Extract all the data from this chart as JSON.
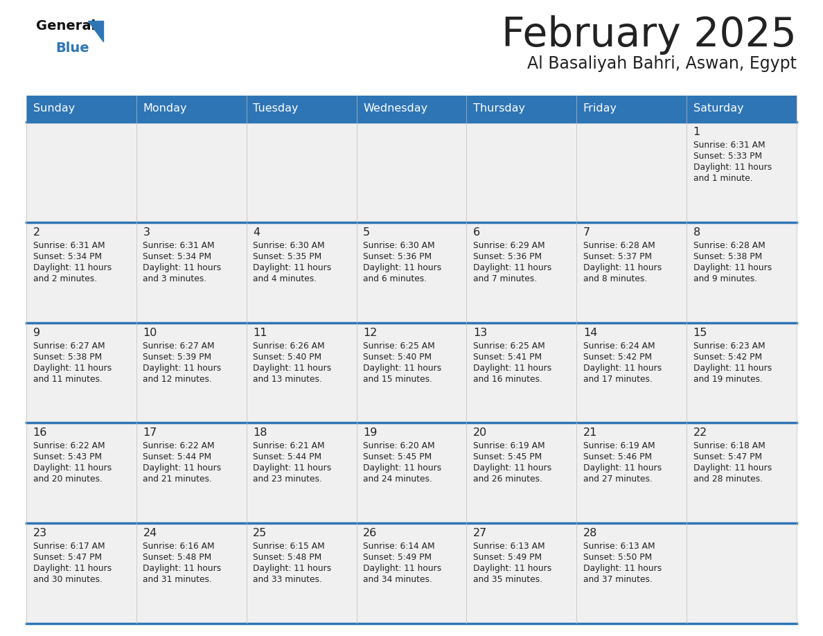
{
  "title": "February 2025",
  "subtitle": "Al Basaliyah Bahri, Aswan, Egypt",
  "header_color": "#2E75B6",
  "header_text_color": "#FFFFFF",
  "day_names": [
    "Sunday",
    "Monday",
    "Tuesday",
    "Wednesday",
    "Thursday",
    "Friday",
    "Saturday"
  ],
  "background_color": "#FFFFFF",
  "cell_bg_color": "#F0F0F0",
  "separator_color": "#2E75B6",
  "text_color": "#222222",
  "days": [
    {
      "day": 1,
      "col": 6,
      "row": 0,
      "sunrise": "6:31 AM",
      "sunset": "5:33 PM",
      "daylight": "11 hours and 1 minute."
    },
    {
      "day": 2,
      "col": 0,
      "row": 1,
      "sunrise": "6:31 AM",
      "sunset": "5:34 PM",
      "daylight": "11 hours and 2 minutes."
    },
    {
      "day": 3,
      "col": 1,
      "row": 1,
      "sunrise": "6:31 AM",
      "sunset": "5:34 PM",
      "daylight": "11 hours and 3 minutes."
    },
    {
      "day": 4,
      "col": 2,
      "row": 1,
      "sunrise": "6:30 AM",
      "sunset": "5:35 PM",
      "daylight": "11 hours and 4 minutes."
    },
    {
      "day": 5,
      "col": 3,
      "row": 1,
      "sunrise": "6:30 AM",
      "sunset": "5:36 PM",
      "daylight": "11 hours and 6 minutes."
    },
    {
      "day": 6,
      "col": 4,
      "row": 1,
      "sunrise": "6:29 AM",
      "sunset": "5:36 PM",
      "daylight": "11 hours and 7 minutes."
    },
    {
      "day": 7,
      "col": 5,
      "row": 1,
      "sunrise": "6:28 AM",
      "sunset": "5:37 PM",
      "daylight": "11 hours and 8 minutes."
    },
    {
      "day": 8,
      "col": 6,
      "row": 1,
      "sunrise": "6:28 AM",
      "sunset": "5:38 PM",
      "daylight": "11 hours and 9 minutes."
    },
    {
      "day": 9,
      "col": 0,
      "row": 2,
      "sunrise": "6:27 AM",
      "sunset": "5:38 PM",
      "daylight": "11 hours and 11 minutes."
    },
    {
      "day": 10,
      "col": 1,
      "row": 2,
      "sunrise": "6:27 AM",
      "sunset": "5:39 PM",
      "daylight": "11 hours and 12 minutes."
    },
    {
      "day": 11,
      "col": 2,
      "row": 2,
      "sunrise": "6:26 AM",
      "sunset": "5:40 PM",
      "daylight": "11 hours and 13 minutes."
    },
    {
      "day": 12,
      "col": 3,
      "row": 2,
      "sunrise": "6:25 AM",
      "sunset": "5:40 PM",
      "daylight": "11 hours and 15 minutes."
    },
    {
      "day": 13,
      "col": 4,
      "row": 2,
      "sunrise": "6:25 AM",
      "sunset": "5:41 PM",
      "daylight": "11 hours and 16 minutes."
    },
    {
      "day": 14,
      "col": 5,
      "row": 2,
      "sunrise": "6:24 AM",
      "sunset": "5:42 PM",
      "daylight": "11 hours and 17 minutes."
    },
    {
      "day": 15,
      "col": 6,
      "row": 2,
      "sunrise": "6:23 AM",
      "sunset": "5:42 PM",
      "daylight": "11 hours and 19 minutes."
    },
    {
      "day": 16,
      "col": 0,
      "row": 3,
      "sunrise": "6:22 AM",
      "sunset": "5:43 PM",
      "daylight": "11 hours and 20 minutes."
    },
    {
      "day": 17,
      "col": 1,
      "row": 3,
      "sunrise": "6:22 AM",
      "sunset": "5:44 PM",
      "daylight": "11 hours and 21 minutes."
    },
    {
      "day": 18,
      "col": 2,
      "row": 3,
      "sunrise": "6:21 AM",
      "sunset": "5:44 PM",
      "daylight": "11 hours and 23 minutes."
    },
    {
      "day": 19,
      "col": 3,
      "row": 3,
      "sunrise": "6:20 AM",
      "sunset": "5:45 PM",
      "daylight": "11 hours and 24 minutes."
    },
    {
      "day": 20,
      "col": 4,
      "row": 3,
      "sunrise": "6:19 AM",
      "sunset": "5:45 PM",
      "daylight": "11 hours and 26 minutes."
    },
    {
      "day": 21,
      "col": 5,
      "row": 3,
      "sunrise": "6:19 AM",
      "sunset": "5:46 PM",
      "daylight": "11 hours and 27 minutes."
    },
    {
      "day": 22,
      "col": 6,
      "row": 3,
      "sunrise": "6:18 AM",
      "sunset": "5:47 PM",
      "daylight": "11 hours and 28 minutes."
    },
    {
      "day": 23,
      "col": 0,
      "row": 4,
      "sunrise": "6:17 AM",
      "sunset": "5:47 PM",
      "daylight": "11 hours and 30 minutes."
    },
    {
      "day": 24,
      "col": 1,
      "row": 4,
      "sunrise": "6:16 AM",
      "sunset": "5:48 PM",
      "daylight": "11 hours and 31 minutes."
    },
    {
      "day": 25,
      "col": 2,
      "row": 4,
      "sunrise": "6:15 AM",
      "sunset": "5:48 PM",
      "daylight": "11 hours and 33 minutes."
    },
    {
      "day": 26,
      "col": 3,
      "row": 4,
      "sunrise": "6:14 AM",
      "sunset": "5:49 PM",
      "daylight": "11 hours and 34 minutes."
    },
    {
      "day": 27,
      "col": 4,
      "row": 4,
      "sunrise": "6:13 AM",
      "sunset": "5:49 PM",
      "daylight": "11 hours and 35 minutes."
    },
    {
      "day": 28,
      "col": 5,
      "row": 4,
      "sunrise": "6:13 AM",
      "sunset": "5:50 PM",
      "daylight": "11 hours and 37 minutes."
    }
  ]
}
